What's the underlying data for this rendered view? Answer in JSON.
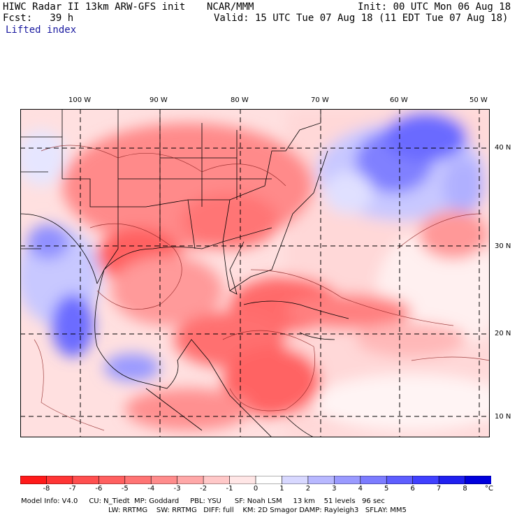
{
  "header": {
    "title": "HIWC Radar II 13km ARW-GFS init",
    "org": "NCAR/MMM",
    "init": "Init: 00 UTC Mon 06 Aug 18",
    "fcst": "Fcst:   39 h",
    "valid": "Valid: 15 UTC Tue 07 Aug 18 (11 EDT Tue 07 Aug 18)",
    "field": "Lifted index"
  },
  "map": {
    "lon_labels": [
      "100 W",
      "90 W",
      "80 W",
      "70 W",
      "60 W",
      "50 W"
    ],
    "lat_labels": [
      "40 N",
      "30 N",
      "20 N",
      "10 N"
    ]
  },
  "colorbar": {
    "labels": [
      "-8",
      "-7",
      "-6",
      "-5",
      "-4",
      "-3",
      "-2",
      "-1",
      "0",
      "1",
      "2",
      "3",
      "4",
      "5",
      "6",
      "7",
      "8"
    ],
    "unit": "°C",
    "colors": [
      "#ff1a1a",
      "#ff3535",
      "#ff4f4f",
      "#ff6060",
      "#ff7474",
      "#ff8c8c",
      "#ffa8a8",
      "#ffc8c8",
      "#ffe6e6",
      "#ffffff",
      "#d8d8ff",
      "#b8b8ff",
      "#9a9aff",
      "#7c7cff",
      "#5e5eff",
      "#4040ff",
      "#2020f0",
      "#0000dd"
    ]
  },
  "footer": {
    "line1": "Model Info: V4.0     CU: N_Tiedt  MP: Goddard     PBL: YSU      SF: Noah LSM     13 km    51 levels   96 sec",
    "line2": "LW: RRTMG    SW: RRTMG   DIFF: full    KM: 2D Smagor DAMP: Rayleigh3   SFLAY: MM5"
  }
}
